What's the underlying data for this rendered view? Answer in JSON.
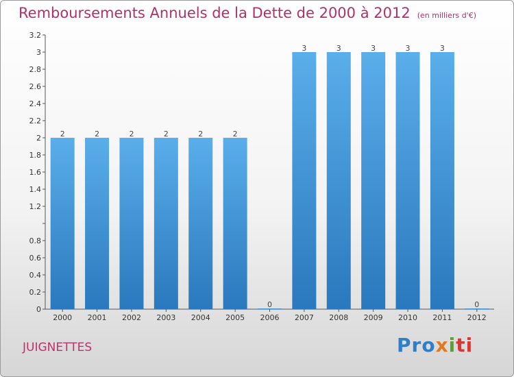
{
  "chart_data": {
    "type": "bar",
    "title": "Remboursements Annuels de la Dette de 2000 à 2012",
    "subtitle": "(en milliers d'€)",
    "categories": [
      "2000",
      "2001",
      "2002",
      "2003",
      "2004",
      "2005",
      "2006",
      "2007",
      "2008",
      "2009",
      "2010",
      "2011",
      "2012"
    ],
    "values": [
      2,
      2,
      2,
      2,
      2,
      2,
      0,
      3,
      3,
      3,
      3,
      3,
      0
    ],
    "data_labels": [
      "2",
      "2",
      "2",
      "2",
      "2",
      "2",
      "0",
      "3",
      "3",
      "3",
      "3",
      "3",
      "0"
    ],
    "y_ticks": [
      0,
      0.2,
      0.4,
      0.6,
      0.8,
      1,
      1.2,
      1.4,
      1.6,
      1.8,
      2,
      2.2,
      2.4,
      2.6,
      2.8,
      3,
      3.2
    ],
    "y_tick_labels": [
      "0",
      "0.2",
      "0.4",
      "0.6",
      "0.8",
      "",
      "1.2",
      "1.4",
      "1.6",
      "1.8",
      "2",
      "2.2",
      "2.4",
      "2.6",
      "2.8",
      "3",
      "3.2"
    ],
    "ylim": [
      0,
      3.2
    ],
    "grid": false,
    "bar_color": "#4a9ee0"
  },
  "footer": {
    "commune": "JUIGNETTES",
    "logo": {
      "p1": "Pro",
      "p2": "x",
      "p3": "i",
      "p4": "ti"
    }
  }
}
